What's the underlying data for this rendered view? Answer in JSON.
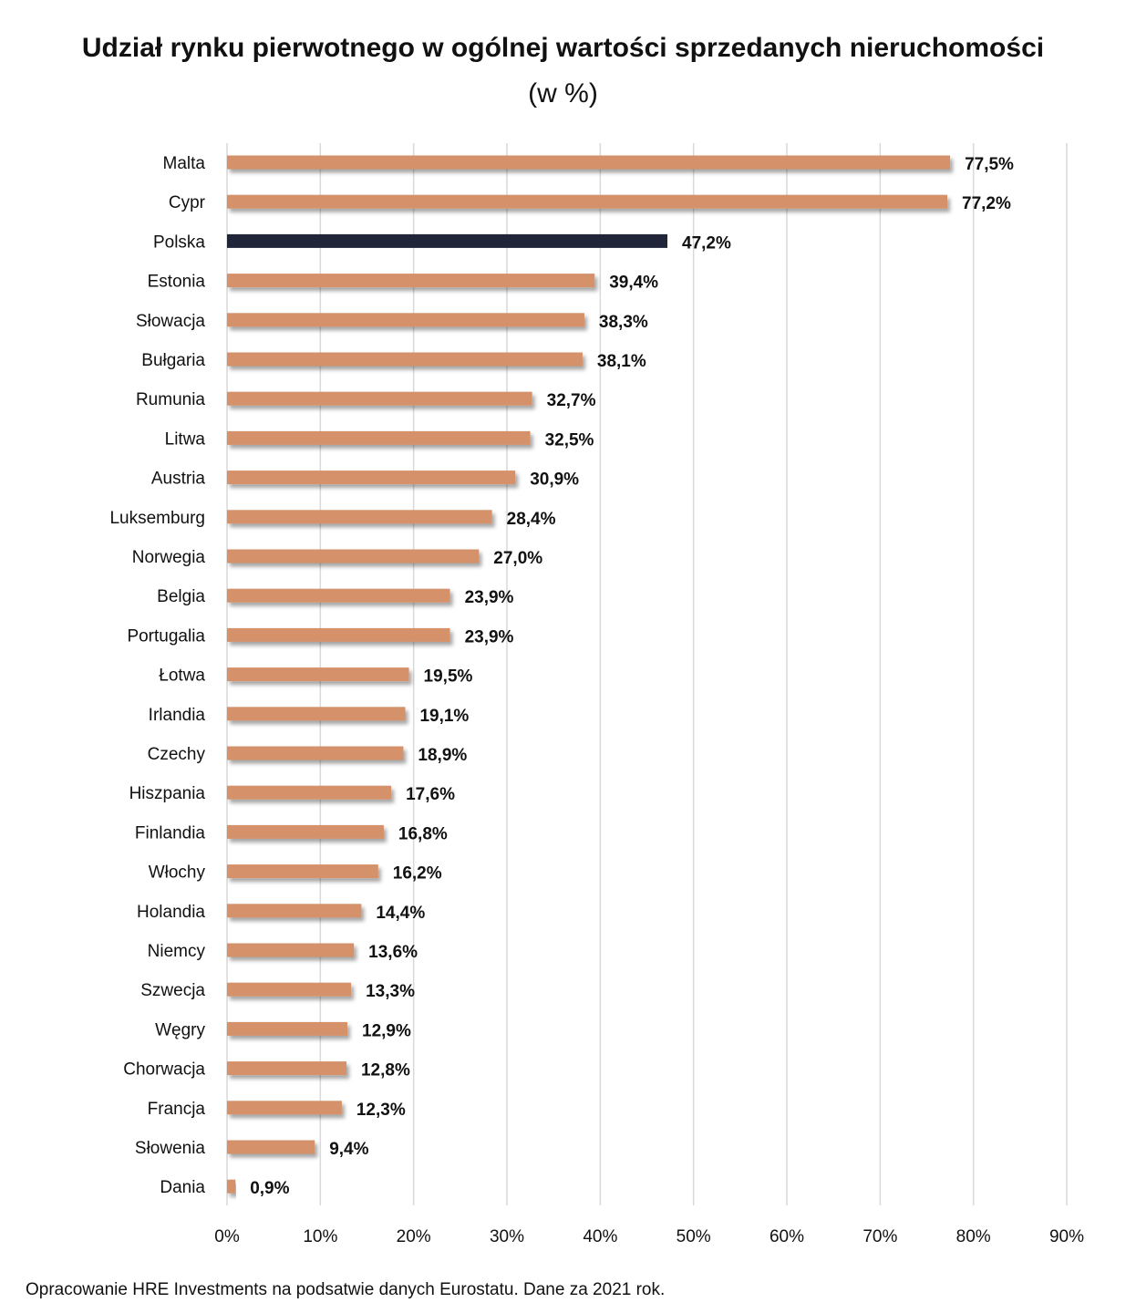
{
  "chart_data": {
    "type": "bar",
    "orientation": "horizontal",
    "title": "Udział rynku pierwotnego w ogólnej wartości sprzedanych nieruchomości",
    "subtitle": "(w %)",
    "categories": [
      "Malta",
      "Cypr",
      "Polska",
      "Estonia",
      "Słowacja",
      "Bułgaria",
      "Rumunia",
      "Litwa",
      "Austria",
      "Luksemburg",
      "Norwegia",
      "Belgia",
      "Portugalia",
      "Łotwa",
      "Irlandia",
      "Czechy",
      "Hiszpania",
      "Finlandia",
      "Włochy",
      "Holandia",
      "Niemcy",
      "Szwecja",
      "Węgry",
      "Chorwacja",
      "Francja",
      "Słowenia",
      "Dania"
    ],
    "values": [
      77.5,
      77.2,
      47.2,
      39.4,
      38.3,
      38.1,
      32.7,
      32.5,
      30.9,
      28.4,
      27.0,
      23.9,
      23.9,
      19.5,
      19.1,
      18.9,
      17.6,
      16.8,
      16.2,
      14.4,
      13.6,
      13.3,
      12.9,
      12.8,
      12.3,
      9.4,
      0.9
    ],
    "value_labels": [
      "77,5%",
      "77,2%",
      "47,2%",
      "39,4%",
      "38,3%",
      "38,1%",
      "32,7%",
      "32,5%",
      "30,9%",
      "28,4%",
      "27,0%",
      "23,9%",
      "23,9%",
      "19,5%",
      "19,1%",
      "18,9%",
      "17,6%",
      "16,8%",
      "16,2%",
      "14,4%",
      "13,6%",
      "13,3%",
      "12,9%",
      "12,8%",
      "12,3%",
      "9,4%",
      "0,9%"
    ],
    "highlight_category": "Polska",
    "xlim": [
      0,
      90
    ],
    "xticks": [
      0,
      10,
      20,
      30,
      40,
      50,
      60,
      70,
      80,
      90
    ],
    "xtick_labels": [
      "0%",
      "10%",
      "20%",
      "30%",
      "40%",
      "50%",
      "60%",
      "70%",
      "80%",
      "90%"
    ],
    "grid": true,
    "xlabel": "",
    "ylabel": ""
  },
  "colors": {
    "bar": "#D4916A",
    "highlight_bar": "#20253A",
    "grid": "#D9D9D9"
  },
  "footer": "Opracowanie HRE Investments na podsatwie danych Eurostatu. Dane za 2021 rok."
}
